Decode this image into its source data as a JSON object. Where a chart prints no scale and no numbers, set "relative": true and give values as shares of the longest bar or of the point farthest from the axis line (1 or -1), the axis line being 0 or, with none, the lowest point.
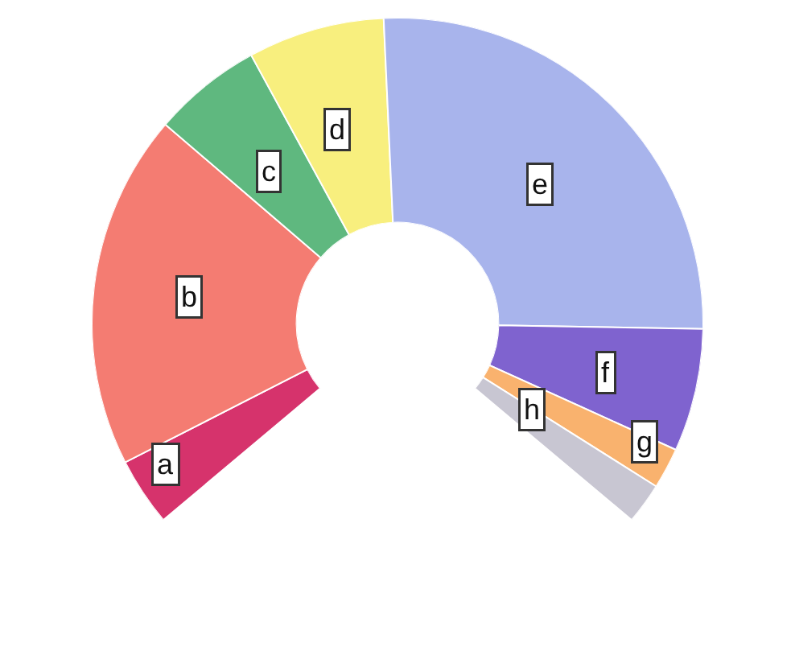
{
  "chart_data": {
    "type": "donut",
    "relative": true,
    "categories": [
      "a",
      "b",
      "c",
      "d",
      "e",
      "f",
      "g",
      "h"
    ],
    "values": [
      5,
      26,
      8,
      10,
      36,
      9,
      3,
      3
    ],
    "colors": [
      "#d6336c",
      "#f47c72",
      "#5fb87f",
      "#f8ef7e",
      "#a8b4ec",
      "#7f63cf",
      "#f9b26e",
      "#c8c6d2"
    ],
    "legend": false
  }
}
